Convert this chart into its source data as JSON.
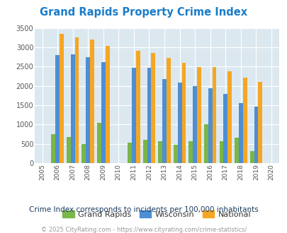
{
  "title": "Grand Rapids Property Crime Index",
  "subtitle": "Crime Index corresponds to incidents per 100,000 inhabitants",
  "footer": "© 2025 CityRating.com - https://www.cityrating.com/crime-statistics/",
  "years": [
    2005,
    2006,
    2007,
    2008,
    2009,
    2010,
    2011,
    2012,
    2013,
    2014,
    2015,
    2016,
    2017,
    2018,
    2019,
    2020
  ],
  "grand_rapids": [
    0,
    750,
    680,
    490,
    1040,
    0,
    535,
    610,
    570,
    480,
    570,
    1000,
    575,
    665,
    305,
    0
  ],
  "wisconsin": [
    0,
    2800,
    2820,
    2750,
    2620,
    0,
    2460,
    2475,
    2180,
    2090,
    1990,
    1935,
    1800,
    1555,
    1465,
    0
  ],
  "national": [
    0,
    3340,
    3260,
    3200,
    3040,
    0,
    2910,
    2860,
    2720,
    2600,
    2495,
    2480,
    2370,
    2210,
    2105,
    0
  ],
  "bar_width": 0.27,
  "ylim": [
    0,
    3500
  ],
  "yticks": [
    0,
    500,
    1000,
    1500,
    2000,
    2500,
    3000,
    3500
  ],
  "color_gr": "#7ab648",
  "color_wi": "#4d8ed4",
  "color_na": "#f5a623",
  "bg_color": "#dce8f0",
  "title_color": "#1a7cc9",
  "subtitle_color": "#1a3a5c",
  "footer_color": "#999999",
  "grid_color": "#ffffff"
}
